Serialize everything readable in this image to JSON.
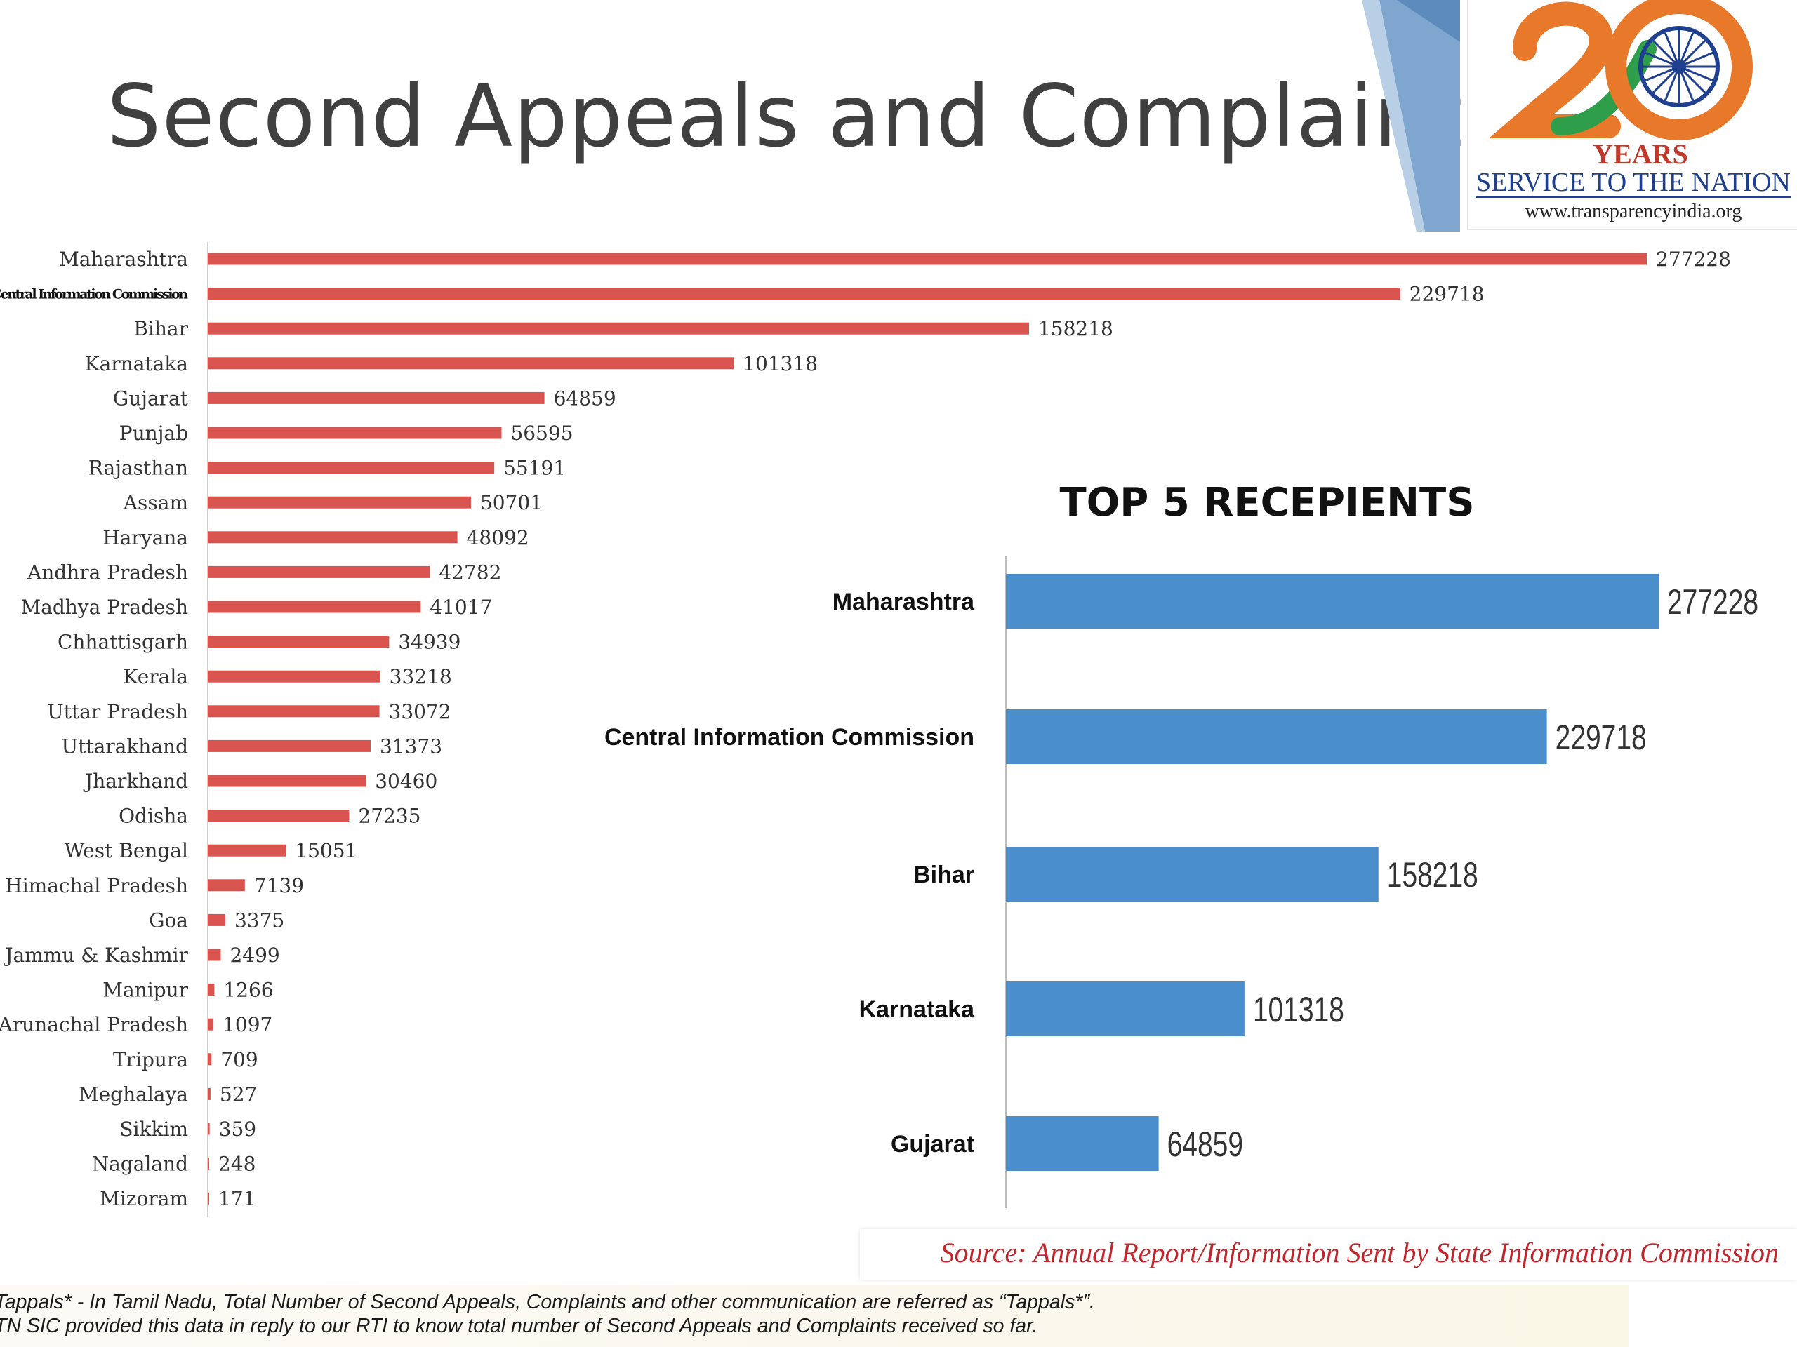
{
  "slide": {
    "title": "Second Appeals and Complaints"
  },
  "logo": {
    "years": "YEARS",
    "service": "SERVICE TO THE NATION",
    "url": "www.transparencyindia.org"
  },
  "colors": {
    "main_bar": "#d9534f",
    "inset_bar": "#4a8fcb",
    "title_text": "#404040",
    "source_text": "#c0262c"
  },
  "chart_data": [
    {
      "type": "bar",
      "orientation": "horizontal",
      "categories": [
        "Maharashtra",
        "Central Information Commission",
        "Bihar",
        "Karnataka",
        "Gujarat",
        "Punjab",
        "Rajasthan",
        "Assam",
        "Haryana",
        "Andhra Pradesh",
        "Madhya Pradesh",
        "Chhattisgarh",
        "Kerala",
        "Uttar Pradesh",
        "Uttarakhand",
        "Jharkhand",
        "Odisha",
        "West Bengal",
        "Himachal Pradesh",
        "Goa",
        "Jammu & Kashmir",
        "Manipur",
        "Arunachal Pradesh",
        "Tripura",
        "Meghalaya",
        "Sikkim",
        "Nagaland",
        "Mizoram"
      ],
      "values": [
        277228,
        229718,
        158218,
        101318,
        64859,
        56595,
        55191,
        50701,
        48092,
        42782,
        41017,
        34939,
        33218,
        33072,
        31373,
        30460,
        27235,
        15051,
        7139,
        3375,
        2499,
        1266,
        1097,
        709,
        527,
        359,
        248,
        171
      ],
      "value_labels": [
        "277228",
        "229718",
        "158218",
        "101318",
        "64859",
        "56595",
        "55191",
        "50701",
        "48092",
        "42782",
        "41017",
        "34939",
        "33218",
        "33072",
        "31373",
        "30460",
        "27235",
        "15051",
        "7139",
        "3375",
        "2499",
        "1266",
        "1097",
        "709",
        "527",
        "359",
        "248",
        "171"
      ],
      "xlim": [
        0,
        277228
      ],
      "grid": false,
      "legend": "none"
    },
    {
      "type": "bar",
      "orientation": "horizontal",
      "title": "TOP 5 RECEPIENTS",
      "categories": [
        "Maharashtra",
        "Central Information Commission",
        "Bihar",
        "Karnataka",
        "Gujarat"
      ],
      "values": [
        277228,
        229718,
        158218,
        101318,
        64859
      ],
      "value_labels": [
        "277228",
        "229718",
        "158218",
        "101318",
        "64859"
      ],
      "xlim": [
        0,
        277228
      ],
      "grid": false,
      "legend": "none"
    }
  ],
  "source": {
    "text": "Source: Annual Report/Information Sent by State Information Commission"
  },
  "footnotes": {
    "line1": "Tappals* - In Tamil Nadu, Total Number of Second Appeals, Complaints and other communication are referred as “Tappals*”.",
    "line2": "TN SIC provided this data in reply to our RTI to know total number of Second Appeals and Complaints received so far."
  }
}
